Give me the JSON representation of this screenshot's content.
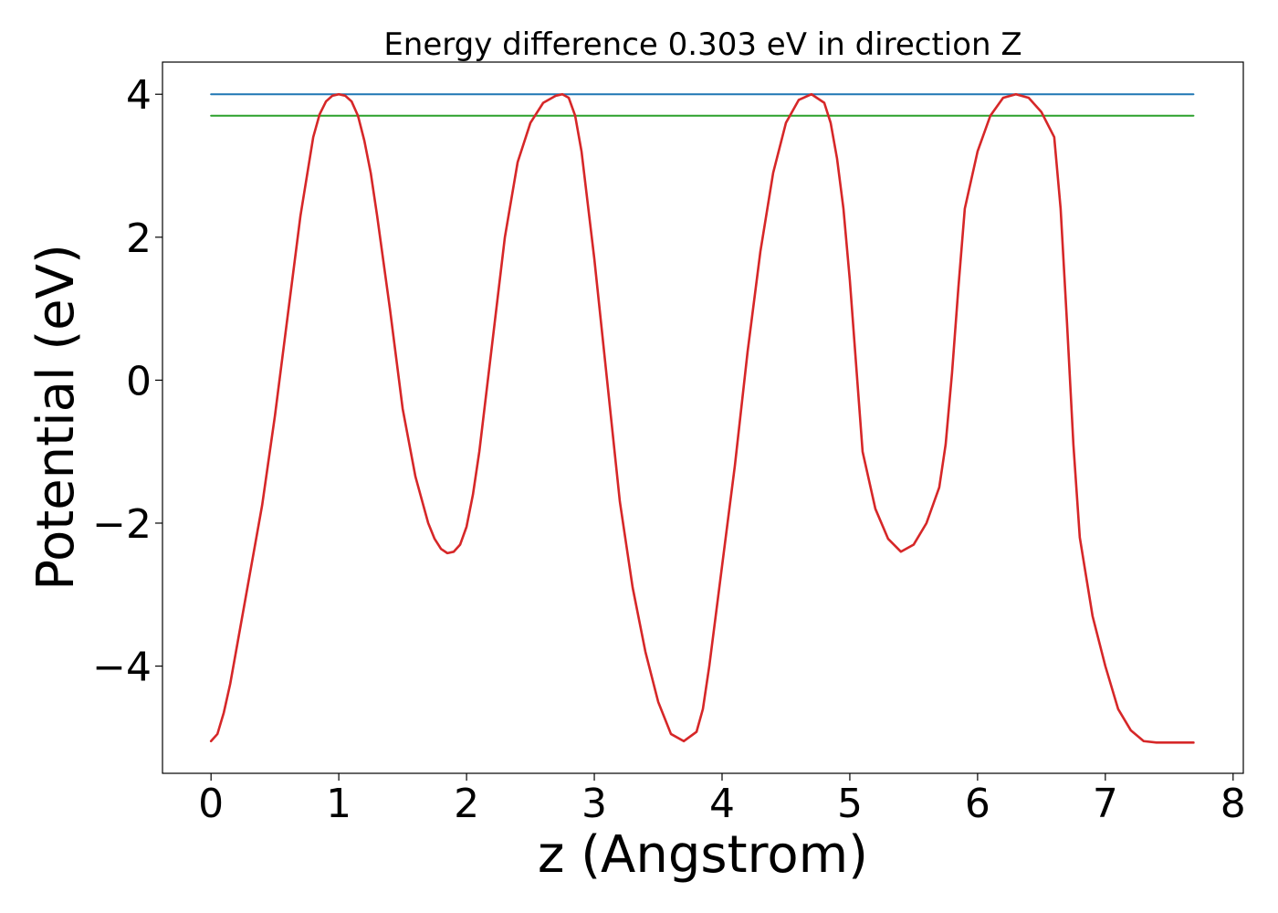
{
  "chart_data": {
    "type": "line",
    "title": "Energy difference 0.303 eV in direction Z",
    "xlabel": "z (Angstrom)",
    "ylabel": "Potential (eV)",
    "xlim": [
      -0.38,
      8.08
    ],
    "ylim": [
      -5.5,
      4.45
    ],
    "x_ticks": [
      0,
      1,
      2,
      3,
      4,
      5,
      6,
      7,
      8
    ],
    "x_tick_labels": [
      "0",
      "1",
      "2",
      "3",
      "4",
      "5",
      "6",
      "7",
      "8"
    ],
    "y_ticks": [
      -4,
      -2,
      0,
      2,
      4
    ],
    "y_tick_labels": [
      "−4",
      "−2",
      "0",
      "2",
      "4"
    ],
    "grid": false,
    "legend": "none",
    "series": [
      {
        "color": "#1f77b4",
        "x": [
          0,
          7.69
        ],
        "y": [
          4.0,
          4.0
        ]
      },
      {
        "color": "#2ca02c",
        "x": [
          0,
          7.69
        ],
        "y": [
          3.7,
          3.7
        ]
      },
      {
        "color": "#d62728",
        "x": [
          0.0,
          0.05,
          0.1,
          0.15,
          0.2,
          0.3,
          0.4,
          0.5,
          0.6,
          0.7,
          0.8,
          0.85,
          0.9,
          0.95,
          1.0,
          1.05,
          1.1,
          1.15,
          1.2,
          1.25,
          1.3,
          1.4,
          1.5,
          1.6,
          1.7,
          1.75,
          1.8,
          1.85,
          1.9,
          1.95,
          2.0,
          2.05,
          2.1,
          2.2,
          2.3,
          2.4,
          2.5,
          2.6,
          2.7,
          2.75,
          2.8,
          2.85,
          2.9,
          3.0,
          3.1,
          3.2,
          3.3,
          3.4,
          3.5,
          3.6,
          3.7,
          3.8,
          3.85,
          3.9,
          3.95,
          4.0,
          4.1,
          4.2,
          4.3,
          4.4,
          4.5,
          4.6,
          4.7,
          4.8,
          4.85,
          4.9,
          4.95,
          5.0,
          5.05,
          5.1,
          5.2,
          5.3,
          5.4,
          5.5,
          5.6,
          5.7,
          5.75,
          5.8,
          5.85,
          5.9,
          6.0,
          6.1,
          6.2,
          6.3,
          6.4,
          6.5,
          6.6,
          6.65,
          6.7,
          6.75,
          6.8,
          6.9,
          7.0,
          7.1,
          7.2,
          7.3,
          7.4,
          7.5,
          7.6,
          7.65,
          7.69
        ],
        "y": [
          -5.05,
          -4.95,
          -4.65,
          -4.25,
          -3.75,
          -2.75,
          -1.75,
          -0.5,
          0.9,
          2.3,
          3.4,
          3.72,
          3.9,
          3.98,
          4.0,
          3.98,
          3.9,
          3.7,
          3.35,
          2.9,
          2.3,
          1.0,
          -0.4,
          -1.35,
          -2.0,
          -2.22,
          -2.36,
          -2.42,
          -2.4,
          -2.3,
          -2.05,
          -1.6,
          -1.0,
          0.5,
          2.0,
          3.05,
          3.6,
          3.88,
          3.98,
          4.0,
          3.95,
          3.7,
          3.2,
          1.7,
          0.0,
          -1.7,
          -2.9,
          -3.8,
          -4.5,
          -4.95,
          -5.05,
          -4.92,
          -4.6,
          -4.0,
          -3.3,
          -2.6,
          -1.2,
          0.4,
          1.8,
          2.9,
          3.6,
          3.92,
          4.0,
          3.88,
          3.6,
          3.1,
          2.4,
          1.4,
          0.2,
          -1.0,
          -1.8,
          -2.22,
          -2.4,
          -2.3,
          -2.0,
          -1.5,
          -0.9,
          0.1,
          1.3,
          2.4,
          3.2,
          3.7,
          3.95,
          4.0,
          3.95,
          3.75,
          3.4,
          2.4,
          0.8,
          -0.9,
          -2.2,
          -3.3,
          -4.0,
          -4.6,
          -4.9,
          -5.05,
          -5.07,
          -5.07,
          -5.07,
          -5.07,
          -5.07
        ]
      }
    ]
  }
}
